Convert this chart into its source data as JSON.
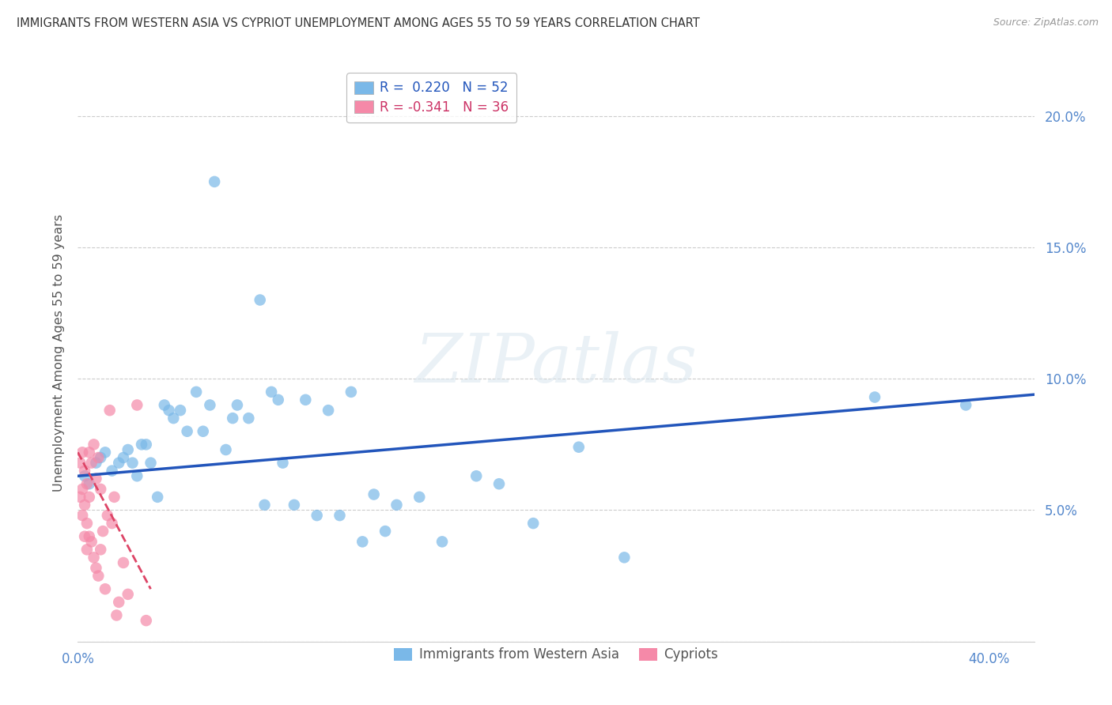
{
  "title": "IMMIGRANTS FROM WESTERN ASIA VS CYPRIOT UNEMPLOYMENT AMONG AGES 55 TO 59 YEARS CORRELATION CHART",
  "source": "Source: ZipAtlas.com",
  "ylabel": "Unemployment Among Ages 55 to 59 years",
  "xlim": [
    0.0,
    0.42
  ],
  "ylim": [
    0.0,
    0.22
  ],
  "legend_blue_r": "R =  0.220",
  "legend_blue_n": "N = 52",
  "legend_pink_r": "R = -0.341",
  "legend_pink_n": "N = 36",
  "blue_color": "#7ab8e8",
  "pink_color": "#f589a8",
  "trendline_blue_color": "#2255bb",
  "trendline_pink_color": "#dd4466",
  "background_color": "#ffffff",
  "grid_color": "#cccccc",
  "title_color": "#333333",
  "axis_tick_color": "#5588cc",
  "watermark": "ZIPatlas",
  "blue_scatter_x": [
    0.003,
    0.005,
    0.008,
    0.01,
    0.012,
    0.015,
    0.018,
    0.02,
    0.022,
    0.024,
    0.026,
    0.028,
    0.03,
    0.032,
    0.035,
    0.038,
    0.04,
    0.042,
    0.045,
    0.048,
    0.052,
    0.055,
    0.058,
    0.06,
    0.065,
    0.068,
    0.07,
    0.075,
    0.08,
    0.082,
    0.085,
    0.088,
    0.09,
    0.095,
    0.1,
    0.105,
    0.11,
    0.115,
    0.12,
    0.125,
    0.13,
    0.135,
    0.14,
    0.15,
    0.16,
    0.175,
    0.185,
    0.2,
    0.22,
    0.24,
    0.35,
    0.39
  ],
  "blue_scatter_y": [
    0.063,
    0.06,
    0.068,
    0.07,
    0.072,
    0.065,
    0.068,
    0.07,
    0.073,
    0.068,
    0.063,
    0.075,
    0.075,
    0.068,
    0.055,
    0.09,
    0.088,
    0.085,
    0.088,
    0.08,
    0.095,
    0.08,
    0.09,
    0.175,
    0.073,
    0.085,
    0.09,
    0.085,
    0.13,
    0.052,
    0.095,
    0.092,
    0.068,
    0.052,
    0.092,
    0.048,
    0.088,
    0.048,
    0.095,
    0.038,
    0.056,
    0.042,
    0.052,
    0.055,
    0.038,
    0.063,
    0.06,
    0.045,
    0.074,
    0.032,
    0.093,
    0.09
  ],
  "pink_scatter_x": [
    0.001,
    0.001,
    0.002,
    0.002,
    0.002,
    0.003,
    0.003,
    0.003,
    0.004,
    0.004,
    0.004,
    0.005,
    0.005,
    0.005,
    0.006,
    0.006,
    0.007,
    0.007,
    0.008,
    0.008,
    0.009,
    0.009,
    0.01,
    0.01,
    0.011,
    0.012,
    0.013,
    0.014,
    0.015,
    0.016,
    0.017,
    0.018,
    0.02,
    0.022,
    0.026,
    0.03
  ],
  "pink_scatter_y": [
    0.068,
    0.055,
    0.072,
    0.058,
    0.048,
    0.065,
    0.052,
    0.04,
    0.06,
    0.045,
    0.035,
    0.072,
    0.055,
    0.04,
    0.068,
    0.038,
    0.075,
    0.032,
    0.062,
    0.028,
    0.07,
    0.025,
    0.058,
    0.035,
    0.042,
    0.02,
    0.048,
    0.088,
    0.045,
    0.055,
    0.01,
    0.015,
    0.03,
    0.018,
    0.09,
    0.008
  ],
  "blue_trendline_x": [
    0.0,
    0.42
  ],
  "blue_trendline_y": [
    0.063,
    0.094
  ],
  "pink_trendline_x": [
    0.0,
    0.032
  ],
  "pink_trendline_y": [
    0.072,
    0.02
  ],
  "xtick_positions": [
    0.0,
    0.1,
    0.2,
    0.3,
    0.4
  ],
  "xtick_labels": [
    "0.0%",
    "",
    "",
    "",
    "40.0%"
  ],
  "ytick_positions": [
    0.0,
    0.05,
    0.1,
    0.15,
    0.2
  ],
  "ytick_labels": [
    "",
    "5.0%",
    "10.0%",
    "15.0%",
    "20.0%"
  ]
}
